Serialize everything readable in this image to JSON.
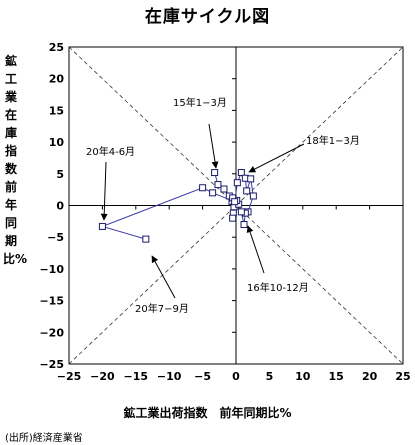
{
  "title": "在庫サイクル図",
  "source": "(出所)経済産業省",
  "chart_data": {
    "type": "scatter",
    "title": "在庫サイクル図",
    "xlabel": "鉱工業出荷指数　前年同期比%",
    "ylabel": "鉱工業在庫指数　前年同期比%",
    "xlim": [
      -25,
      25
    ],
    "ylim": [
      -25,
      25
    ],
    "xticks": [
      -25,
      -20,
      -15,
      -10,
      -5,
      0,
      5,
      10,
      15,
      20,
      25
    ],
    "yticks": [
      -25,
      -20,
      -15,
      -10,
      -5,
      0,
      5,
      10,
      15,
      20,
      25
    ],
    "grid": false,
    "diagonals": true,
    "series": [
      {
        "connected": true,
        "x": [
          -3.2,
          -2.7,
          -1.8,
          -1.0,
          -0.6,
          -0.3,
          -0.4,
          -0.5,
          0.2,
          0.8,
          1.4,
          1.6,
          2.2,
          2.6,
          1.8,
          1.4,
          1.2,
          0.8,
          0.4,
          0.1,
          -0.5,
          -0.2,
          -3.5,
          -5.0,
          -20.0,
          -13.5
        ],
        "y": [
          5.2,
          3.3,
          2.6,
          1.5,
          0.6,
          -0.2,
          -1.2,
          -2.0,
          3.6,
          5.2,
          4.3,
          2.3,
          4.2,
          1.5,
          -1.0,
          -1.2,
          -3.0,
          -1.0,
          0.2,
          0.8,
          1.2,
          0.6,
          2.0,
          2.8,
          -3.3,
          -5.3
        ]
      }
    ],
    "annotations": [
      "15年1−3月",
      "18年1−3月",
      "20年4-6月",
      "16年10-12月",
      "20年7−9月"
    ]
  }
}
